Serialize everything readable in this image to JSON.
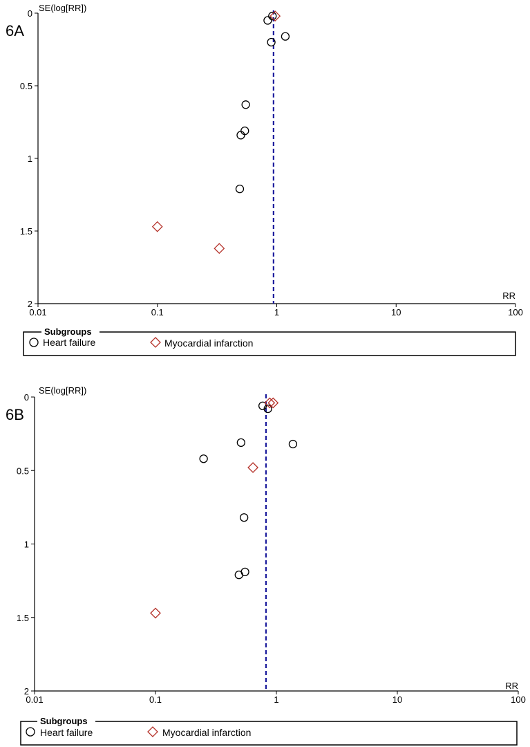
{
  "chart_data": [
    {
      "type": "scatter",
      "title": "",
      "panel_label": "6A",
      "xlabel": "RR",
      "ylabel": "SE(log[RR])",
      "x_scale": "log",
      "xlim": [
        0.01,
        100
      ],
      "ylim": [
        0,
        2
      ],
      "y_reversed": true,
      "x_ticks": [
        0.01,
        0.1,
        1,
        10,
        100
      ],
      "x_tick_labels": [
        "0.01",
        "0.1",
        "1",
        "10",
        "100"
      ],
      "y_ticks": [
        0,
        0.5,
        1,
        1.5,
        2
      ],
      "y_tick_labels": [
        "0",
        "0.5",
        "1",
        "1.5",
        "2"
      ],
      "reference_line": {
        "x": 0.94,
        "style": "dashed",
        "color": "#1a1a9c"
      },
      "legend": {
        "title": "Subgroups",
        "placement": "bottom"
      },
      "series": [
        {
          "name": "Heart failure",
          "marker": "circle",
          "color": "#000000",
          "points": [
            {
              "x": 0.92,
              "y": 0.02
            },
            {
              "x": 0.84,
              "y": 0.05
            },
            {
              "x": 1.18,
              "y": 0.16
            },
            {
              "x": 0.9,
              "y": 0.2
            },
            {
              "x": 0.55,
              "y": 0.63
            },
            {
              "x": 0.54,
              "y": 0.81
            },
            {
              "x": 0.5,
              "y": 0.84
            },
            {
              "x": 0.49,
              "y": 1.21
            }
          ]
        },
        {
          "name": "Myocardial infarction",
          "marker": "diamond",
          "color": "#b5322a",
          "points": [
            {
              "x": 0.97,
              "y": 0.02
            },
            {
              "x": 0.1,
              "y": 1.47
            },
            {
              "x": 0.33,
              "y": 1.62
            }
          ]
        }
      ]
    },
    {
      "type": "scatter",
      "title": "",
      "panel_label": "6B",
      "xlabel": "RR",
      "ylabel": "SE(log[RR])",
      "x_scale": "log",
      "xlim": [
        0.01,
        100
      ],
      "ylim": [
        0,
        2
      ],
      "y_reversed": true,
      "x_ticks": [
        0.01,
        0.1,
        1,
        10,
        100
      ],
      "x_tick_labels": [
        "0.01",
        "0.1",
        "1",
        "10",
        "100"
      ],
      "y_ticks": [
        0,
        0.5,
        1,
        1.5,
        2
      ],
      "y_tick_labels": [
        "0",
        "0.5",
        "1",
        "1.5",
        "2"
      ],
      "reference_line": {
        "x": 0.82,
        "style": "dashed",
        "color": "#1a1a9c"
      },
      "legend": {
        "title": "Subgroups",
        "placement": "bottom"
      },
      "series": [
        {
          "name": "Heart failure",
          "marker": "circle",
          "color": "#000000",
          "points": [
            {
              "x": 0.77,
              "y": 0.06
            },
            {
              "x": 0.85,
              "y": 0.08
            },
            {
              "x": 0.51,
              "y": 0.31
            },
            {
              "x": 1.37,
              "y": 0.32
            },
            {
              "x": 0.25,
              "y": 0.42
            },
            {
              "x": 0.54,
              "y": 0.82
            },
            {
              "x": 0.55,
              "y": 1.19
            },
            {
              "x": 0.49,
              "y": 1.21
            }
          ]
        },
        {
          "name": "Myocardial infarction",
          "marker": "diamond",
          "color": "#b5322a",
          "points": [
            {
              "x": 0.88,
              "y": 0.04
            },
            {
              "x": 0.94,
              "y": 0.04
            },
            {
              "x": 0.64,
              "y": 0.48
            },
            {
              "x": 0.1,
              "y": 1.47
            }
          ]
        }
      ]
    }
  ]
}
